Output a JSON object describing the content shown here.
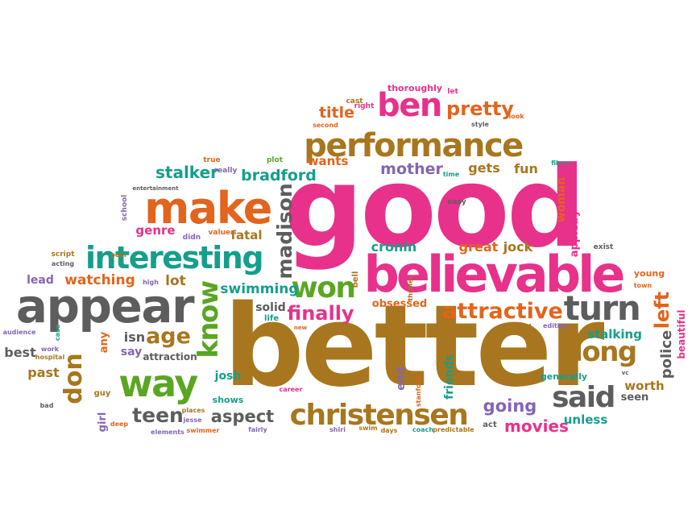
{
  "palette": {
    "pink": "#e8318a",
    "brown": "#a8761e",
    "orange": "#e3641c",
    "green": "#5aa623",
    "gray": "#5d5d5d",
    "purple": "#8465b4",
    "teal": "#159e8c"
  },
  "words": [
    {
      "text": "better",
      "color": "brown"
    },
    {
      "text": "good",
      "color": "pink"
    },
    {
      "text": "appear",
      "color": "gray"
    },
    {
      "text": "believable",
      "color": "pink"
    },
    {
      "text": "make",
      "color": "orange"
    },
    {
      "text": "performance",
      "color": "brown"
    },
    {
      "text": "interesting",
      "color": "teal"
    },
    {
      "text": "christensen",
      "color": "brown"
    },
    {
      "text": "way",
      "color": "green"
    },
    {
      "text": "said",
      "color": "gray"
    },
    {
      "text": "turn",
      "color": "gray"
    },
    {
      "text": "attractive",
      "color": "orange"
    },
    {
      "text": "ben",
      "color": "pink"
    },
    {
      "text": "won",
      "color": "green"
    },
    {
      "text": "long",
      "color": "brown"
    },
    {
      "text": "pretty",
      "color": "orange"
    },
    {
      "text": "know",
      "color": "green"
    },
    {
      "text": "teen",
      "color": "gray"
    },
    {
      "text": "aspect",
      "color": "gray"
    },
    {
      "text": "age",
      "color": "brown"
    },
    {
      "text": "don",
      "color": "brown"
    },
    {
      "text": "madison",
      "color": "gray"
    },
    {
      "text": "finally",
      "color": "pink"
    },
    {
      "text": "going",
      "color": "purple"
    },
    {
      "text": "left",
      "color": "orange"
    },
    {
      "text": "movies",
      "color": "pink"
    },
    {
      "text": "mother",
      "color": "purple"
    },
    {
      "text": "stalker",
      "color": "teal"
    },
    {
      "text": "bradford",
      "color": "teal"
    },
    {
      "text": "title",
      "color": "orange"
    },
    {
      "text": "swimming",
      "color": "teal"
    },
    {
      "text": "watching",
      "color": "orange"
    },
    {
      "text": "genre",
      "color": "pink"
    },
    {
      "text": "lot",
      "color": "brown"
    },
    {
      "text": "wants",
      "color": "orange"
    },
    {
      "text": "fun",
      "color": "brown"
    },
    {
      "text": "gets",
      "color": "brown"
    },
    {
      "text": "cronin",
      "color": "teal"
    },
    {
      "text": "great",
      "color": "orange"
    },
    {
      "text": "jock",
      "color": "brown"
    },
    {
      "text": "fatal",
      "color": "brown"
    },
    {
      "text": "police",
      "color": "gray"
    },
    {
      "text": "stalking",
      "color": "teal"
    },
    {
      "text": "worth",
      "color": "brown"
    },
    {
      "text": "seen",
      "color": "gray"
    },
    {
      "text": "unless",
      "color": "teal"
    },
    {
      "text": "past",
      "color": "brown"
    },
    {
      "text": "best",
      "color": "gray"
    },
    {
      "text": "lead",
      "color": "purple"
    },
    {
      "text": "isn",
      "color": "gray"
    },
    {
      "text": "say",
      "color": "purple"
    },
    {
      "text": "solid",
      "color": "gray"
    },
    {
      "text": "obsessed",
      "color": "orange"
    },
    {
      "text": "end",
      "color": "purple"
    },
    {
      "text": "friends",
      "color": "teal"
    },
    {
      "text": "woman",
      "color": "orange"
    },
    {
      "text": "appleby",
      "color": "pink"
    },
    {
      "text": "josh",
      "color": "teal"
    },
    {
      "text": "attraction",
      "color": "gray"
    },
    {
      "text": "any",
      "color": "orange"
    },
    {
      "text": "girl",
      "color": "purple"
    },
    {
      "text": "young",
      "color": "orange"
    },
    {
      "text": "beautiful",
      "color": "pink"
    },
    {
      "text": "ahead",
      "color": "brown"
    },
    {
      "text": "generally",
      "color": "teal"
    },
    {
      "text": "thoroughly",
      "color": "pink"
    },
    {
      "text": "shows",
      "color": "teal"
    },
    {
      "text": "act",
      "color": "gray"
    },
    {
      "text": "guy",
      "color": "brown"
    },
    {
      "text": "bell",
      "color": "brown"
    },
    {
      "text": "life",
      "color": "teal"
    },
    {
      "text": "cast",
      "color": "brown"
    },
    {
      "text": "right",
      "color": "pink"
    },
    {
      "text": "second",
      "color": "orange"
    },
    {
      "text": "let",
      "color": "pink"
    },
    {
      "text": "look",
      "color": "orange"
    },
    {
      "text": "style",
      "color": "gray"
    },
    {
      "text": "true",
      "color": "orange"
    },
    {
      "text": "plot",
      "color": "green"
    },
    {
      "text": "really",
      "color": "purple"
    },
    {
      "text": "time",
      "color": "teal"
    },
    {
      "text": "films",
      "color": "teal"
    },
    {
      "text": "entertainment",
      "color": "gray"
    },
    {
      "text": "school",
      "color": "purple"
    },
    {
      "text": "easy",
      "color": "gray"
    },
    {
      "text": "didn",
      "color": "purple"
    },
    {
      "text": "values",
      "color": "orange"
    },
    {
      "text": "exist",
      "color": "gray"
    },
    {
      "text": "script",
      "color": "brown"
    },
    {
      "text": "pool",
      "color": "brown"
    },
    {
      "text": "acting",
      "color": "gray"
    },
    {
      "text": "high",
      "color": "purple"
    },
    {
      "text": "town",
      "color": "orange"
    },
    {
      "text": "audience",
      "color": "purple"
    },
    {
      "text": "case",
      "color": "teal"
    },
    {
      "text": "new",
      "color": "orange"
    },
    {
      "text": "thriller",
      "color": "brown"
    },
    {
      "text": "editing",
      "color": "purple"
    },
    {
      "text": "work",
      "color": "purple"
    },
    {
      "text": "hospital",
      "color": "brown"
    },
    {
      "text": "bad",
      "color": "gray"
    },
    {
      "text": "career",
      "color": "pink"
    },
    {
      "text": "stanford",
      "color": "orange"
    },
    {
      "text": "vc",
      "color": "gray"
    },
    {
      "text": "places",
      "color": "brown"
    },
    {
      "text": "jesse",
      "color": "purple"
    },
    {
      "text": "deep",
      "color": "orange"
    },
    {
      "text": "elements",
      "color": "purple"
    },
    {
      "text": "swimmer",
      "color": "orange"
    },
    {
      "text": "fairly",
      "color": "purple"
    },
    {
      "text": "shiri",
      "color": "purple"
    },
    {
      "text": "swim",
      "color": "brown"
    },
    {
      "text": "days",
      "color": "brown"
    },
    {
      "text": "coach",
      "color": "teal"
    },
    {
      "text": "predictable",
      "color": "brown"
    }
  ]
}
